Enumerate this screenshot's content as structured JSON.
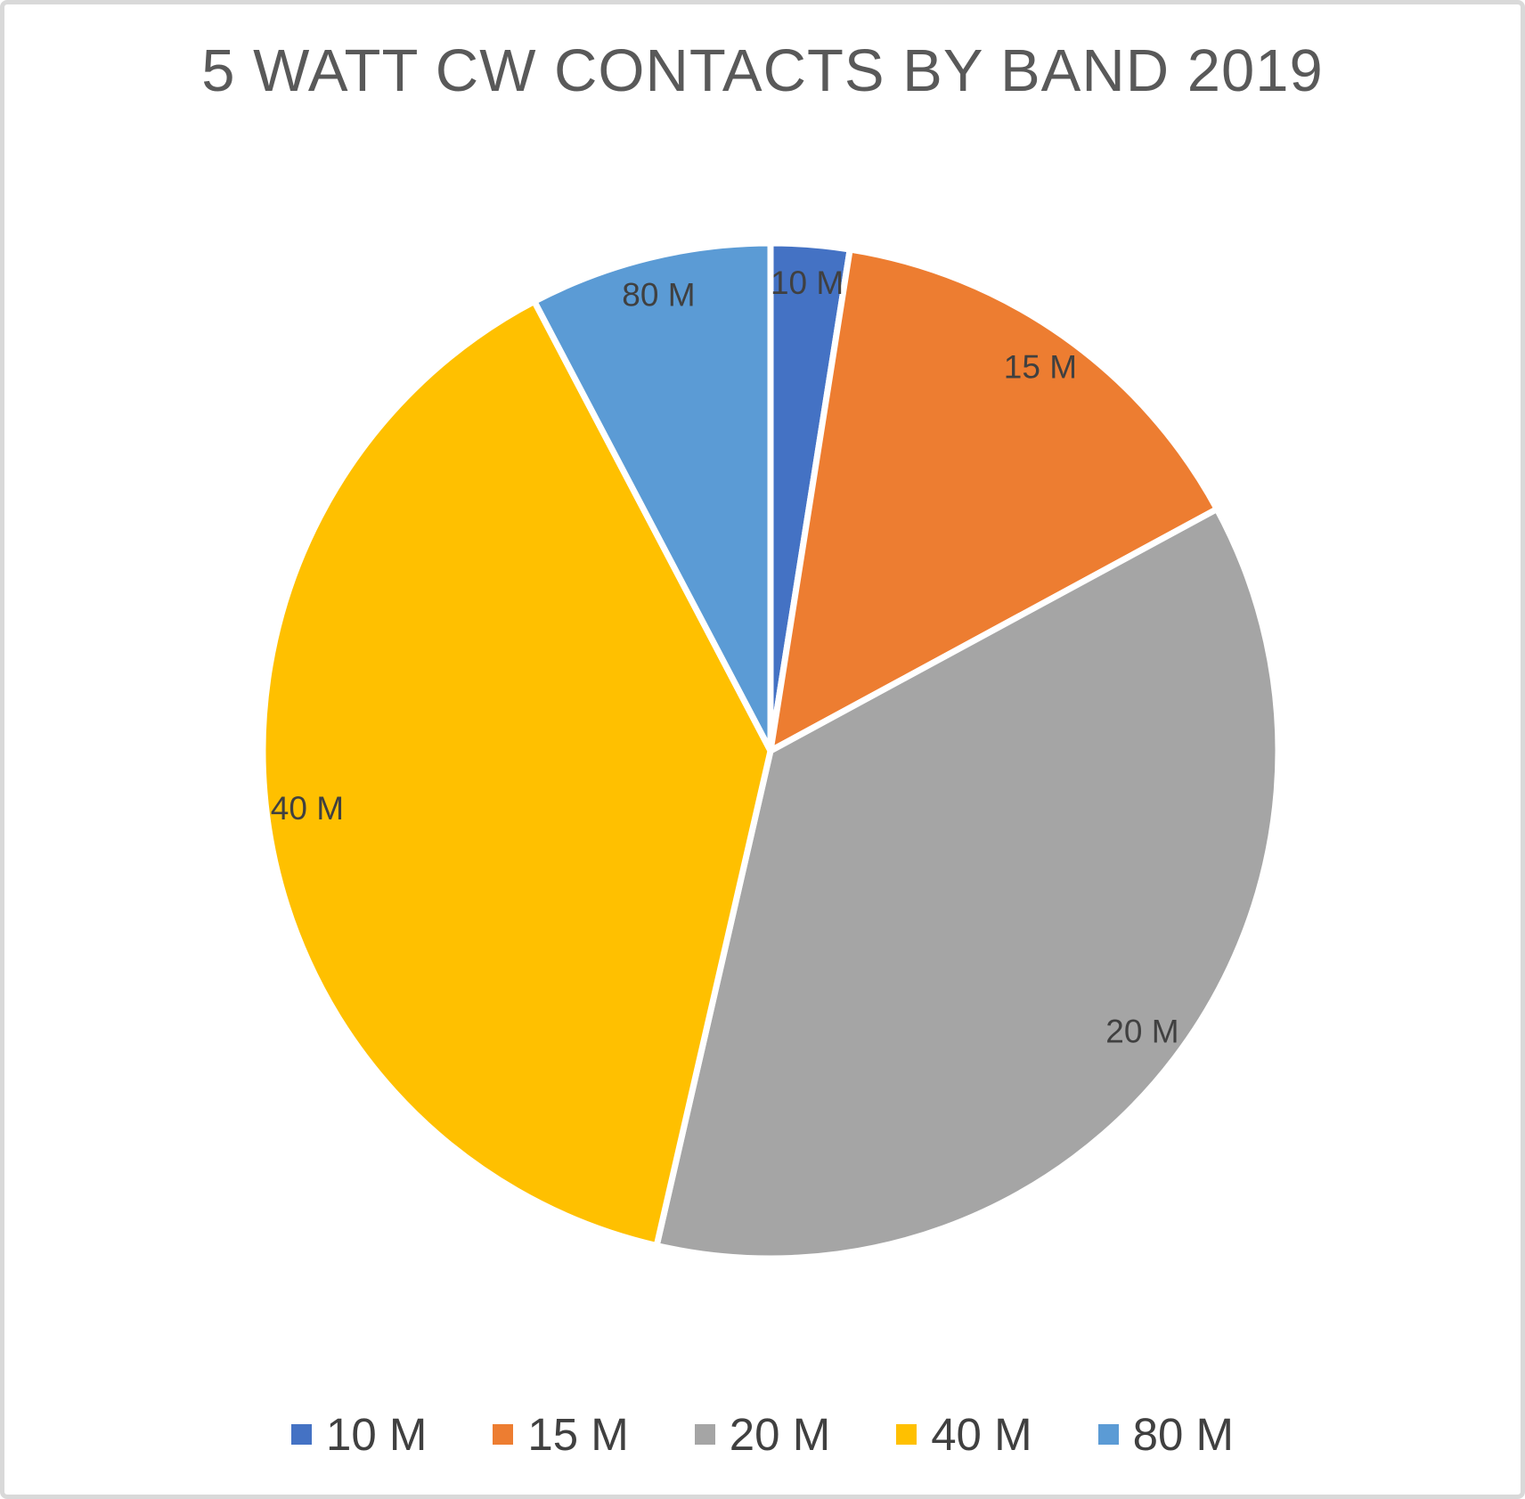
{
  "title": "5 WATT CW CONTACTS BY BAND 2019",
  "chart_data": {
    "type": "pie",
    "title": "5 WATT CW CONTACTS BY BAND 2019",
    "categories": [
      "10 M",
      "15 M",
      "20 M",
      "40 M",
      "80 M"
    ],
    "values_percent": [
      2.5,
      14.6,
      36.5,
      38.7,
      7.7
    ],
    "colors": [
      "#4472C4",
      "#ED7D31",
      "#A5A5A5",
      "#FFC000",
      "#5B9BD5"
    ],
    "slice_labels": [
      "10 M",
      "15 M",
      "20 M",
      "40 M",
      "80 M"
    ],
    "start_angle_deg": 0,
    "direction": "clockwise",
    "slice_border_color": "#FFFFFF",
    "legend_position": "bottom",
    "legend_entries": [
      "10 M",
      "15 M",
      "20 M",
      "40 M",
      "80 M"
    ]
  },
  "styles": {
    "title_color": "#595959",
    "label_color": "#404040",
    "frame_border_color": "#D9D9D9",
    "background_color": "#FFFFFF"
  }
}
